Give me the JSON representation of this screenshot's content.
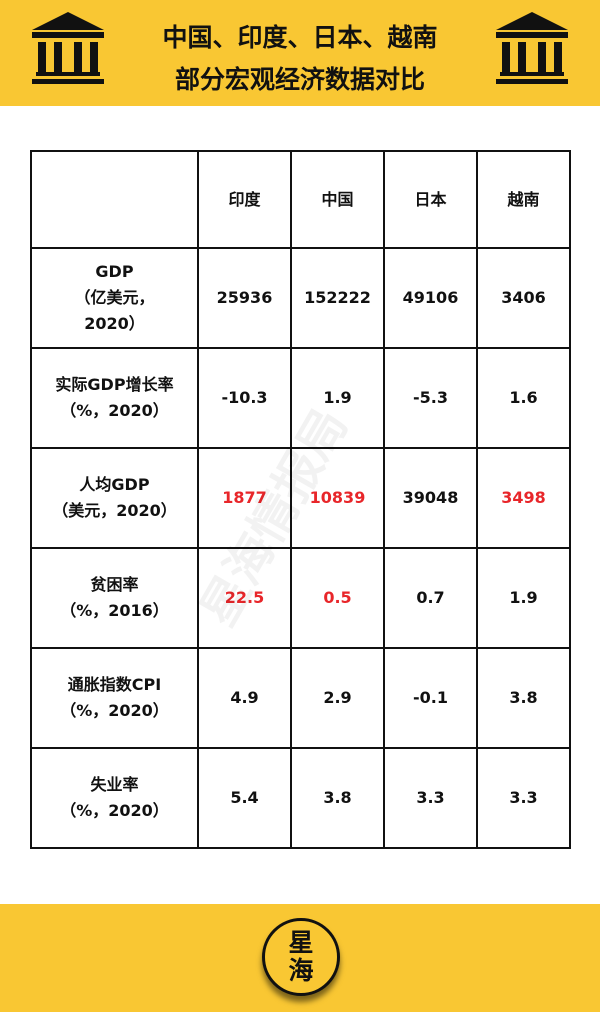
{
  "header": {
    "title_line1": "中国、印度、日本、越南",
    "title_line2": "部分宏观经济数据对比",
    "icon": "bank-building-icon"
  },
  "table": {
    "columns": [
      "",
      "印度",
      "中国",
      "日本",
      "越南"
    ],
    "rows": [
      {
        "label1": "GDP",
        "label2": "（亿美元，",
        "label3": "2020）",
        "values": [
          "25936",
          "152222",
          "49106",
          "3406"
        ],
        "red": [
          false,
          false,
          false,
          false
        ]
      },
      {
        "label1": "实际GDP增长率",
        "label2": "（%，2020）",
        "values": [
          "-10.3",
          "1.9",
          "-5.3",
          "1.6"
        ],
        "red": [
          false,
          false,
          false,
          false
        ]
      },
      {
        "label1": "人均GDP",
        "label2": "（美元，2020）",
        "values": [
          "1877",
          "10839",
          "39048",
          "3498"
        ],
        "red": [
          true,
          true,
          false,
          true
        ]
      },
      {
        "label1": "贫困率",
        "label2": "（%，2016）",
        "values": [
          "22.5",
          "0.5",
          "0.7",
          "1.9"
        ],
        "red": [
          true,
          true,
          false,
          false
        ]
      },
      {
        "label1": "通胀指数CPI",
        "label2": "（%，2020）",
        "values": [
          "4.9",
          "2.9",
          "-0.1",
          "3.8"
        ],
        "red": [
          false,
          false,
          false,
          false
        ]
      },
      {
        "label1": "失业率",
        "label2": "（%，2020）",
        "values": [
          "5.4",
          "3.8",
          "3.3",
          "3.3"
        ],
        "red": [
          false,
          false,
          false,
          false
        ]
      }
    ]
  },
  "watermark": "星海情报局",
  "footer": {
    "logo_line1": "星",
    "logo_line2": "海"
  },
  "colors": {
    "yellow": "#f9c733",
    "highlight": "#e8262a"
  }
}
